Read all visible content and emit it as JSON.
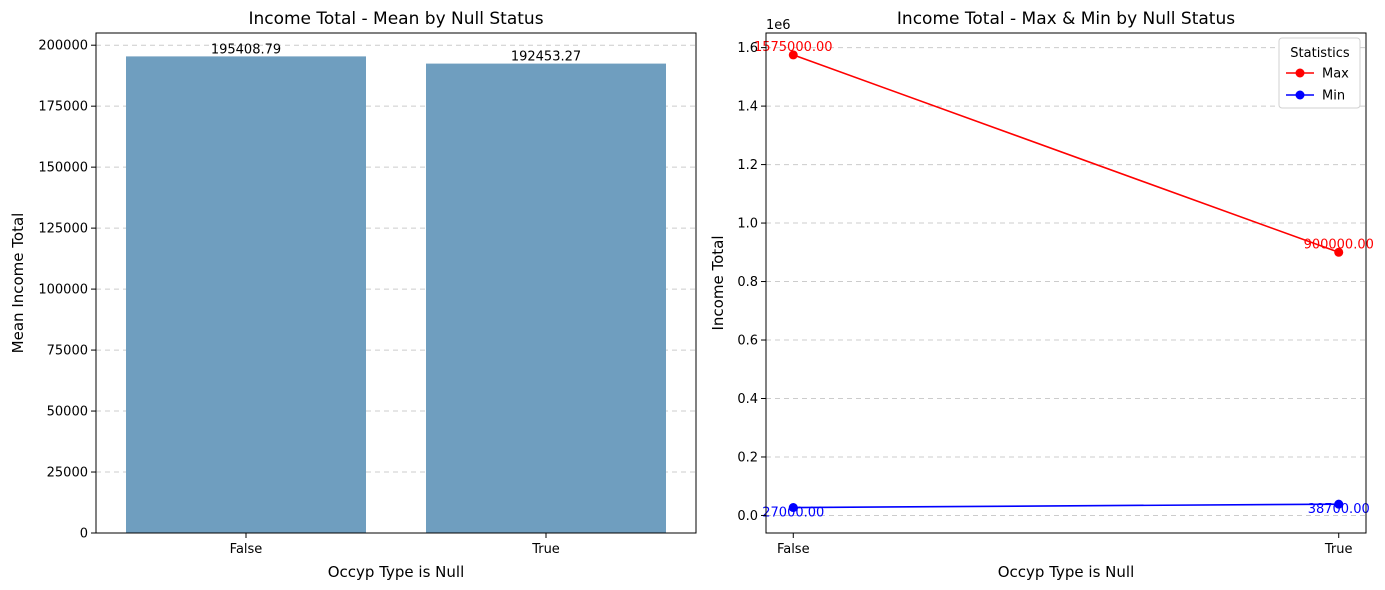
{
  "chart_data": [
    {
      "type": "bar",
      "title": "Income Total - Mean by Null Status",
      "xlabel": "Occyp Type is Null",
      "ylabel": "Mean Income Total",
      "categories": [
        "False",
        "True"
      ],
      "values": [
        195408.79,
        192453.27
      ],
      "value_labels": [
        "195408.79",
        "192453.27"
      ],
      "ylim": [
        0,
        205000
      ],
      "yticks": [
        0,
        25000,
        50000,
        75000,
        100000,
        125000,
        150000,
        175000,
        200000
      ],
      "ytick_labels": [
        "0",
        "25000",
        "50000",
        "75000",
        "100000",
        "125000",
        "150000",
        "175000",
        "200000"
      ],
      "grid": true,
      "bar_color": "#6f9ebf"
    },
    {
      "type": "line",
      "title": "Income Total - Max & Min by Null Status",
      "xlabel": "Occyp Type is Null",
      "ylabel": "Income Total",
      "categories": [
        "False",
        "True"
      ],
      "scale_label": "1e6",
      "ylim": [
        -0.06,
        1.65
      ],
      "yticks": [
        0.0,
        0.2,
        0.4,
        0.6,
        0.8,
        1.0,
        1.2,
        1.4,
        1.6
      ],
      "ytick_labels": [
        "0.0",
        "0.2",
        "0.4",
        "0.6",
        "0.8",
        "1.0",
        "1.2",
        "1.4",
        "1.6"
      ],
      "grid": true,
      "legend": {
        "title": "Statistics",
        "position": "top-right"
      },
      "series": [
        {
          "name": "Max",
          "values": [
            1575000,
            900000
          ],
          "value_labels": [
            "1575000.00",
            "900000.00"
          ],
          "color": "#ff0000"
        },
        {
          "name": "Min",
          "values": [
            27000,
            38700
          ],
          "value_labels": [
            "27000.00",
            "38700.00"
          ],
          "color": "#0000ff"
        }
      ]
    }
  ]
}
